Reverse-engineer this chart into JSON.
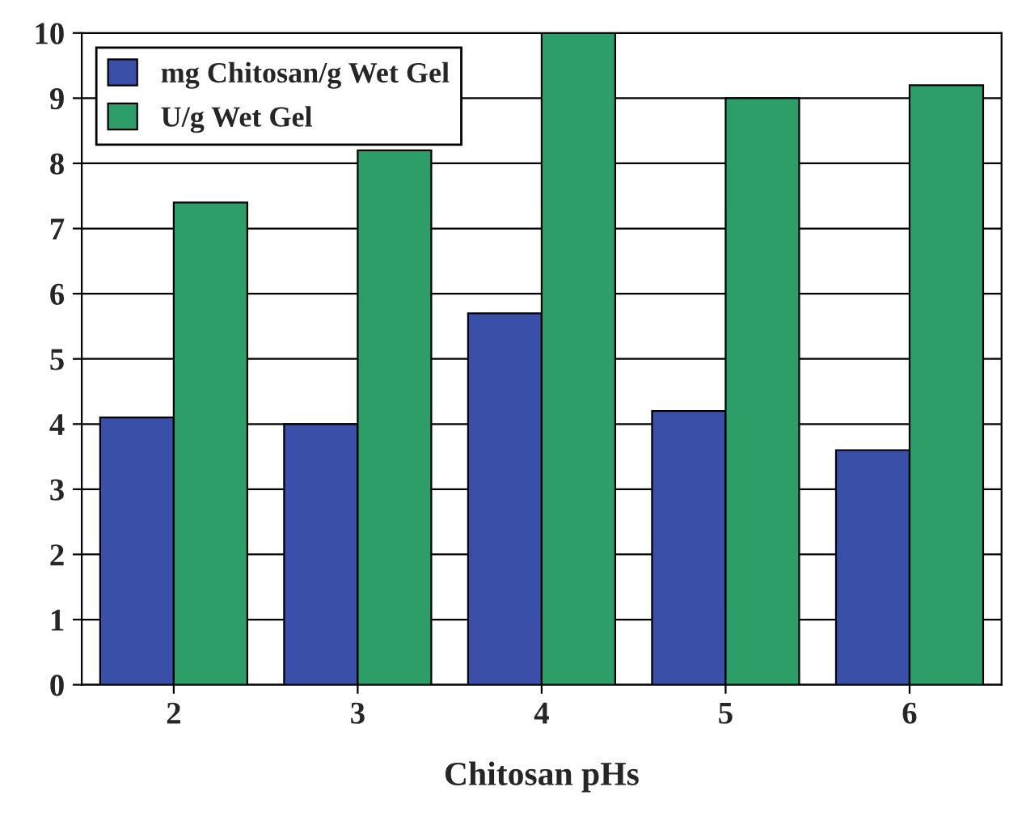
{
  "chart_data": {
    "type": "bar",
    "xlabel": "Chitosan pHs",
    "categories": [
      "2",
      "3",
      "4",
      "5",
      "6"
    ],
    "series": [
      {
        "name": "mg Chitosan/g Wet Gel",
        "color": "#3a4fa8",
        "values": [
          4.1,
          4.0,
          5.7,
          4.2,
          3.6
        ]
      },
      {
        "name": "U/g Wet Gel",
        "color": "#2e9e68",
        "values": [
          7.4,
          8.2,
          10.0,
          9.0,
          9.2
        ]
      }
    ],
    "ylim": [
      0,
      10
    ],
    "yticks": [
      0,
      1,
      2,
      3,
      4,
      5,
      6,
      7,
      8,
      9,
      10
    ],
    "grid": "y",
    "legend": "top left"
  }
}
